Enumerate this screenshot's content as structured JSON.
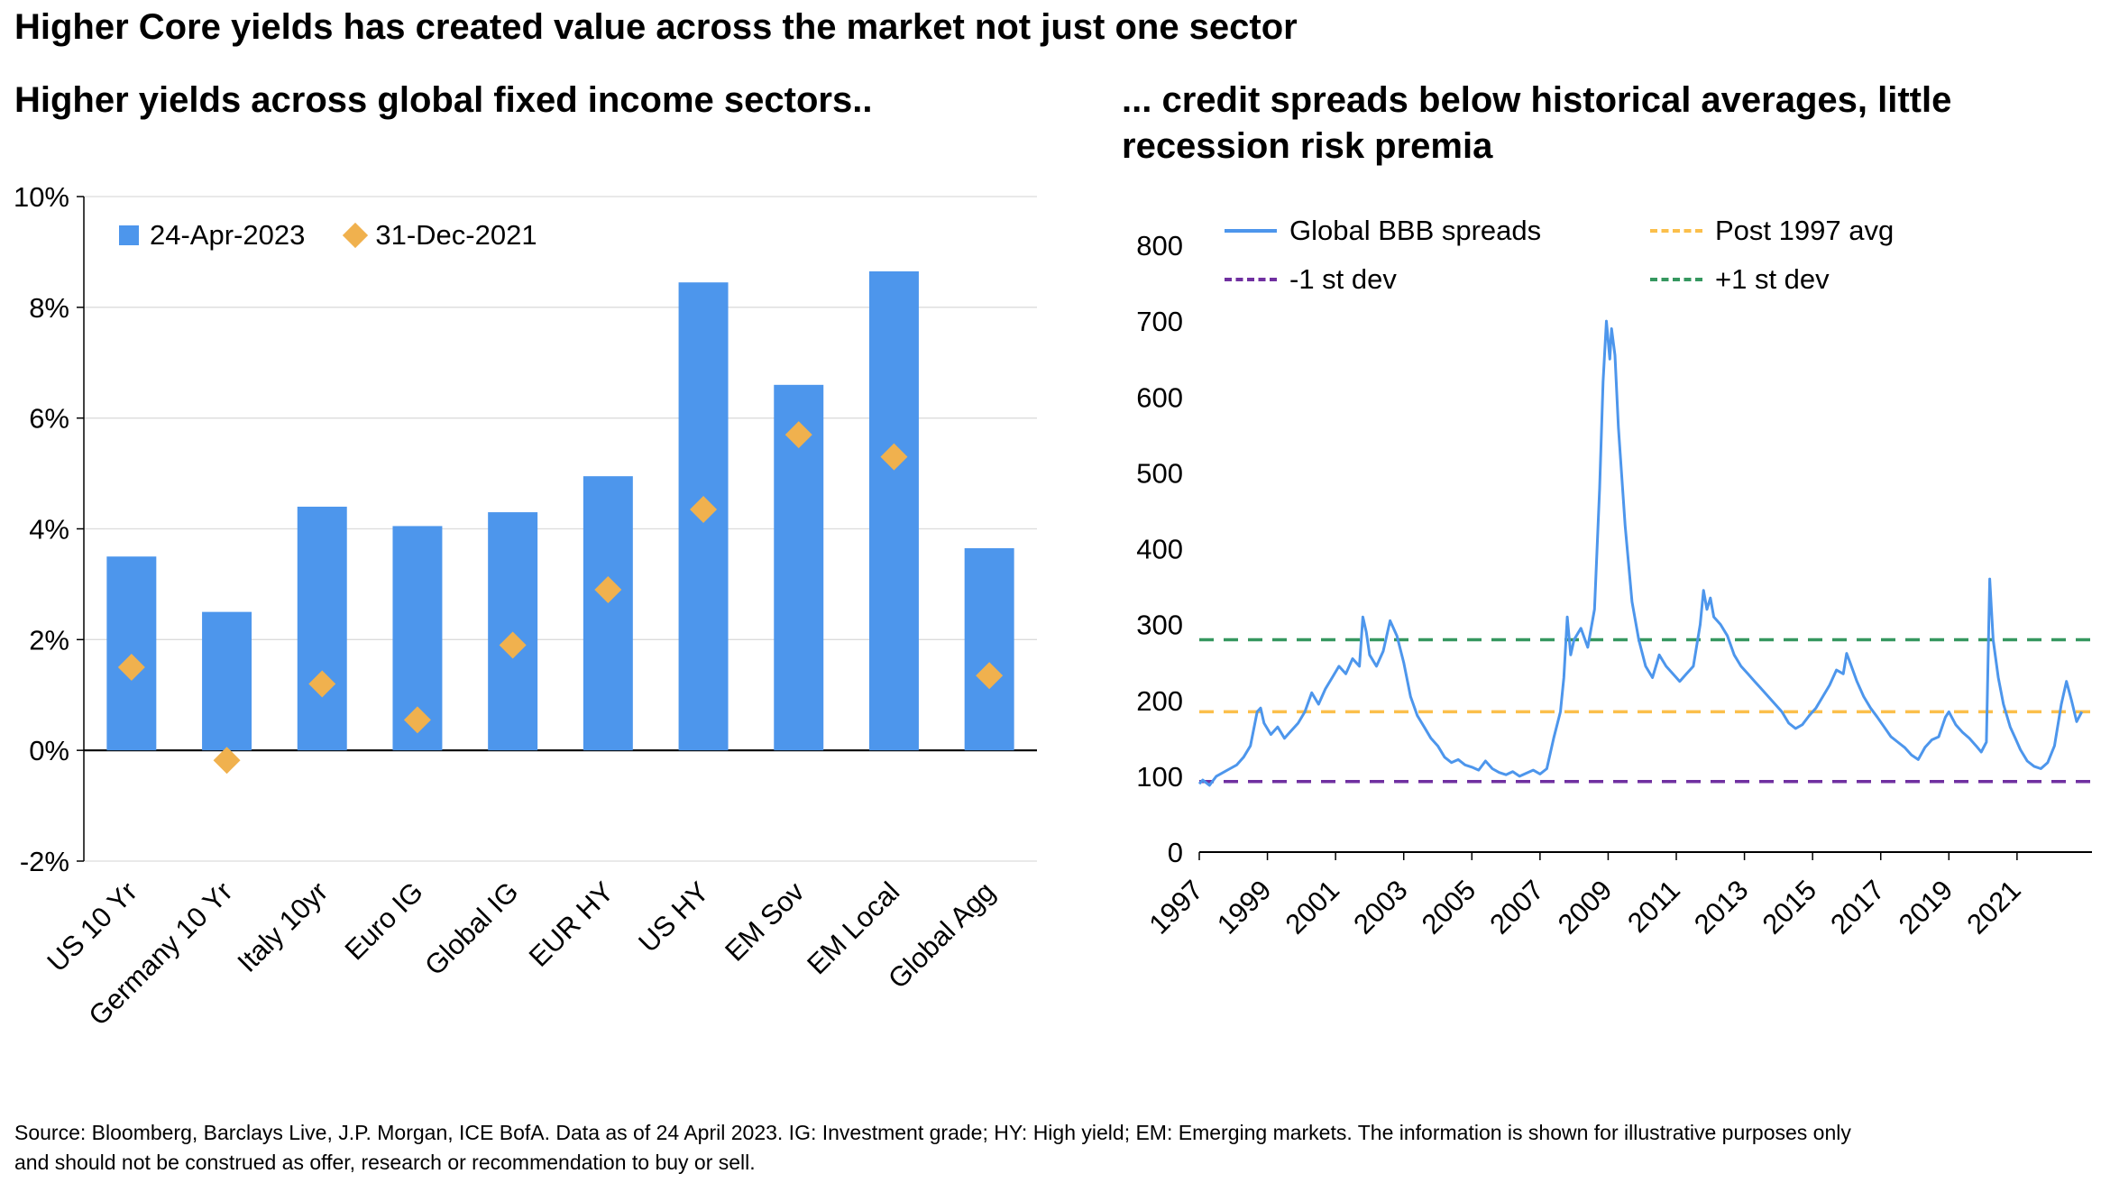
{
  "page": {
    "title": "Higher Core yields has created value across the market not just one sector",
    "footer": {
      "line1": "Source: Bloomberg, Barclays Live, J.P. Morgan, ICE BofA. Data as of 24 April 2023. IG: Investment grade; HY: High yield; EM: Emerging markets. The information is shown for illustrative purposes only",
      "line2": "and should not be construed as offer, research or recommendation to buy or sell."
    }
  },
  "colors": {
    "bar_blue": "#4D96EC",
    "diamond_gold": "#F0B14E",
    "line_blue": "#4D96EC",
    "avg_orange": "#FBBF4B",
    "neg_dev_purple": "#7030A0",
    "pos_dev_green": "#35975F",
    "grid": "#DCDCDC",
    "axis": "#000000"
  },
  "chart_data": [
    {
      "type": "bar",
      "title": "Higher yields across global fixed income sectors..",
      "xlabel": "",
      "ylabel": "",
      "categories": [
        "US 10 Yr",
        "Germany 10 Yr",
        "Italy 10yr",
        "Euro IG",
        "Global IG",
        "EUR HY",
        "US HY",
        "EM Sov",
        "EM Local",
        "Global Agg"
      ],
      "series": [
        {
          "name": "24-Apr-2023",
          "marker": "square",
          "color_key": "bar_blue",
          "values": [
            3.5,
            2.5,
            4.4,
            4.05,
            4.3,
            4.95,
            8.45,
            6.6,
            8.65,
            3.65
          ]
        },
        {
          "name": "31-Dec-2021",
          "marker": "diamond",
          "color_key": "diamond_gold",
          "values": [
            1.5,
            -0.18,
            1.2,
            0.55,
            1.9,
            2.9,
            4.35,
            5.7,
            5.3,
            1.35
          ]
        }
      ],
      "ylim": [
        -2,
        10
      ],
      "ytick_step": 2,
      "ytick_suffix": "%",
      "grid": true,
      "legend_position": "top-left-inside"
    },
    {
      "type": "line",
      "title": "... credit spreads below historical averages, little recession risk premia",
      "xlabel": "",
      "ylabel": "",
      "xlim": [
        1997,
        2023.2
      ],
      "xticks": [
        1997,
        1999,
        2001,
        2003,
        2005,
        2007,
        2009,
        2011,
        2013,
        2015,
        2017,
        2019,
        2021
      ],
      "ylim": [
        0,
        800
      ],
      "ytick_step": 100,
      "grid": false,
      "legend_position": "top",
      "series": [
        {
          "name": "Global BBB spreads",
          "style": "solid",
          "color_key": "line_blue",
          "points": [
            [
              1997.0,
              90
            ],
            [
              1997.1,
              95
            ],
            [
              1997.3,
              88
            ],
            [
              1997.5,
              100
            ],
            [
              1997.7,
              105
            ],
            [
              1997.9,
              110
            ],
            [
              1998.1,
              115
            ],
            [
              1998.3,
              125
            ],
            [
              1998.5,
              140
            ],
            [
              1998.7,
              185
            ],
            [
              1998.8,
              190
            ],
            [
              1998.9,
              170
            ],
            [
              1999.1,
              155
            ],
            [
              1999.3,
              165
            ],
            [
              1999.5,
              150
            ],
            [
              1999.7,
              160
            ],
            [
              1999.9,
              170
            ],
            [
              2000.1,
              185
            ],
            [
              2000.3,
              210
            ],
            [
              2000.5,
              195
            ],
            [
              2000.7,
              215
            ],
            [
              2000.9,
              230
            ],
            [
              2001.1,
              245
            ],
            [
              2001.3,
              235
            ],
            [
              2001.5,
              255
            ],
            [
              2001.7,
              245
            ],
            [
              2001.8,
              310
            ],
            [
              2001.9,
              290
            ],
            [
              2002.0,
              260
            ],
            [
              2002.2,
              245
            ],
            [
              2002.4,
              265
            ],
            [
              2002.6,
              305
            ],
            [
              2002.8,
              285
            ],
            [
              2003.0,
              250
            ],
            [
              2003.2,
              205
            ],
            [
              2003.4,
              180
            ],
            [
              2003.6,
              165
            ],
            [
              2003.8,
              150
            ],
            [
              2004.0,
              140
            ],
            [
              2004.2,
              125
            ],
            [
              2004.4,
              118
            ],
            [
              2004.6,
              122
            ],
            [
              2004.8,
              115
            ],
            [
              2005.0,
              112
            ],
            [
              2005.2,
              108
            ],
            [
              2005.4,
              120
            ],
            [
              2005.6,
              110
            ],
            [
              2005.8,
              105
            ],
            [
              2006.0,
              102
            ],
            [
              2006.2,
              106
            ],
            [
              2006.4,
              100
            ],
            [
              2006.6,
              104
            ],
            [
              2006.8,
              108
            ],
            [
              2007.0,
              103
            ],
            [
              2007.2,
              110
            ],
            [
              2007.4,
              150
            ],
            [
              2007.6,
              185
            ],
            [
              2007.7,
              230
            ],
            [
              2007.8,
              310
            ],
            [
              2007.9,
              260
            ],
            [
              2008.0,
              280
            ],
            [
              2008.2,
              295
            ],
            [
              2008.4,
              270
            ],
            [
              2008.6,
              320
            ],
            [
              2008.75,
              480
            ],
            [
              2008.85,
              620
            ],
            [
              2008.95,
              700
            ],
            [
              2009.05,
              650
            ],
            [
              2009.1,
              690
            ],
            [
              2009.2,
              655
            ],
            [
              2009.3,
              560
            ],
            [
              2009.5,
              430
            ],
            [
              2009.7,
              330
            ],
            [
              2009.9,
              280
            ],
            [
              2010.1,
              245
            ],
            [
              2010.3,
              230
            ],
            [
              2010.5,
              260
            ],
            [
              2010.7,
              245
            ],
            [
              2010.9,
              235
            ],
            [
              2011.1,
              225
            ],
            [
              2011.3,
              235
            ],
            [
              2011.5,
              245
            ],
            [
              2011.7,
              300
            ],
            [
              2011.8,
              345
            ],
            [
              2011.9,
              320
            ],
            [
              2012.0,
              335
            ],
            [
              2012.1,
              310
            ],
            [
              2012.3,
              300
            ],
            [
              2012.5,
              285
            ],
            [
              2012.7,
              260
            ],
            [
              2012.9,
              245
            ],
            [
              2013.1,
              235
            ],
            [
              2013.3,
              225
            ],
            [
              2013.5,
              215
            ],
            [
              2013.7,
              205
            ],
            [
              2013.9,
              195
            ],
            [
              2014.1,
              185
            ],
            [
              2014.3,
              170
            ],
            [
              2014.5,
              163
            ],
            [
              2014.7,
              168
            ],
            [
              2014.9,
              180
            ],
            [
              2015.1,
              190
            ],
            [
              2015.3,
              205
            ],
            [
              2015.5,
              220
            ],
            [
              2015.7,
              240
            ],
            [
              2015.9,
              235
            ],
            [
              2016.0,
              262
            ],
            [
              2016.1,
              250
            ],
            [
              2016.3,
              225
            ],
            [
              2016.5,
              205
            ],
            [
              2016.7,
              190
            ],
            [
              2016.9,
              178
            ],
            [
              2017.1,
              165
            ],
            [
              2017.3,
              152
            ],
            [
              2017.5,
              145
            ],
            [
              2017.7,
              138
            ],
            [
              2017.9,
              128
            ],
            [
              2018.1,
              122
            ],
            [
              2018.3,
              138
            ],
            [
              2018.5,
              148
            ],
            [
              2018.7,
              152
            ],
            [
              2018.9,
              178
            ],
            [
              2019.0,
              185
            ],
            [
              2019.2,
              168
            ],
            [
              2019.4,
              158
            ],
            [
              2019.6,
              150
            ],
            [
              2019.8,
              140
            ],
            [
              2019.95,
              132
            ],
            [
              2020.1,
              145
            ],
            [
              2020.2,
              360
            ],
            [
              2020.3,
              280
            ],
            [
              2020.45,
              230
            ],
            [
              2020.6,
              195
            ],
            [
              2020.8,
              165
            ],
            [
              2020.95,
              150
            ],
            [
              2021.1,
              135
            ],
            [
              2021.3,
              120
            ],
            [
              2021.5,
              113
            ],
            [
              2021.7,
              110
            ],
            [
              2021.9,
              118
            ],
            [
              2022.1,
              140
            ],
            [
              2022.3,
              195
            ],
            [
              2022.45,
              225
            ],
            [
              2022.6,
              200
            ],
            [
              2022.75,
              172
            ],
            [
              2022.9,
              185
            ]
          ]
        },
        {
          "name": "Post 1997 avg",
          "style": "dashed",
          "color_key": "avg_orange",
          "value": 185
        },
        {
          "name": "-1 st dev",
          "style": "dashed",
          "color_key": "neg_dev_purple",
          "value": 93
        },
        {
          "name": "+1 st dev",
          "style": "dashed",
          "color_key": "pos_dev_green",
          "value": 280
        }
      ]
    }
  ]
}
